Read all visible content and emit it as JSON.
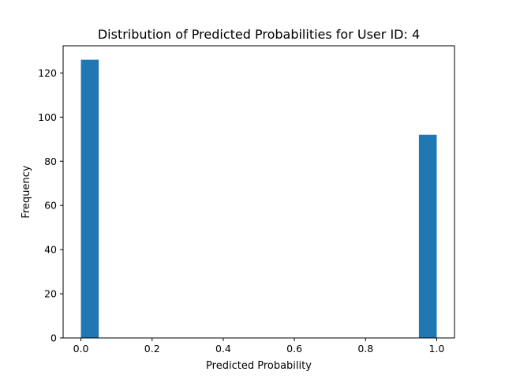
{
  "chart_data": {
    "type": "bar",
    "title": "Distribution of Predicted Probabilities for User ID: 4",
    "xlabel": "Predicted Probability",
    "ylabel": "Frequency",
    "xlim": [
      -0.05,
      1.05
    ],
    "ylim": [
      0,
      132.3
    ],
    "x_ticks": [
      {
        "value": 0.0,
        "label": "0.0"
      },
      {
        "value": 0.2,
        "label": "0.2"
      },
      {
        "value": 0.4,
        "label": "0.4"
      },
      {
        "value": 0.6,
        "label": "0.6"
      },
      {
        "value": 0.8,
        "label": "0.8"
      },
      {
        "value": 1.0,
        "label": "1.0"
      }
    ],
    "y_ticks": [
      {
        "value": 0,
        "label": "0"
      },
      {
        "value": 20,
        "label": "20"
      },
      {
        "value": 40,
        "label": "40"
      },
      {
        "value": 60,
        "label": "60"
      },
      {
        "value": 80,
        "label": "80"
      },
      {
        "value": 100,
        "label": "100"
      },
      {
        "value": 120,
        "label": "120"
      }
    ],
    "bins": [
      {
        "x0": 0.0,
        "x1": 0.05,
        "count": 126
      },
      {
        "x0": 0.05,
        "x1": 0.1,
        "count": 0
      },
      {
        "x0": 0.1,
        "x1": 0.15,
        "count": 0
      },
      {
        "x0": 0.15,
        "x1": 0.2,
        "count": 0
      },
      {
        "x0": 0.2,
        "x1": 0.25,
        "count": 0
      },
      {
        "x0": 0.25,
        "x1": 0.3,
        "count": 0
      },
      {
        "x0": 0.3,
        "x1": 0.35,
        "count": 0
      },
      {
        "x0": 0.35,
        "x1": 0.4,
        "count": 0
      },
      {
        "x0": 0.4,
        "x1": 0.45,
        "count": 0
      },
      {
        "x0": 0.45,
        "x1": 0.5,
        "count": 0
      },
      {
        "x0": 0.5,
        "x1": 0.55,
        "count": 0
      },
      {
        "x0": 0.55,
        "x1": 0.6,
        "count": 0
      },
      {
        "x0": 0.6,
        "x1": 0.65,
        "count": 0
      },
      {
        "x0": 0.65,
        "x1": 0.7,
        "count": 0
      },
      {
        "x0": 0.7,
        "x1": 0.75,
        "count": 0
      },
      {
        "x0": 0.75,
        "x1": 0.8,
        "count": 0
      },
      {
        "x0": 0.8,
        "x1": 0.85,
        "count": 0
      },
      {
        "x0": 0.85,
        "x1": 0.9,
        "count": 0
      },
      {
        "x0": 0.9,
        "x1": 0.95,
        "count": 0
      },
      {
        "x0": 0.95,
        "x1": 1.0,
        "count": 92
      }
    ],
    "bar_color": "#1f77b4",
    "grid": false,
    "legend": "none"
  }
}
